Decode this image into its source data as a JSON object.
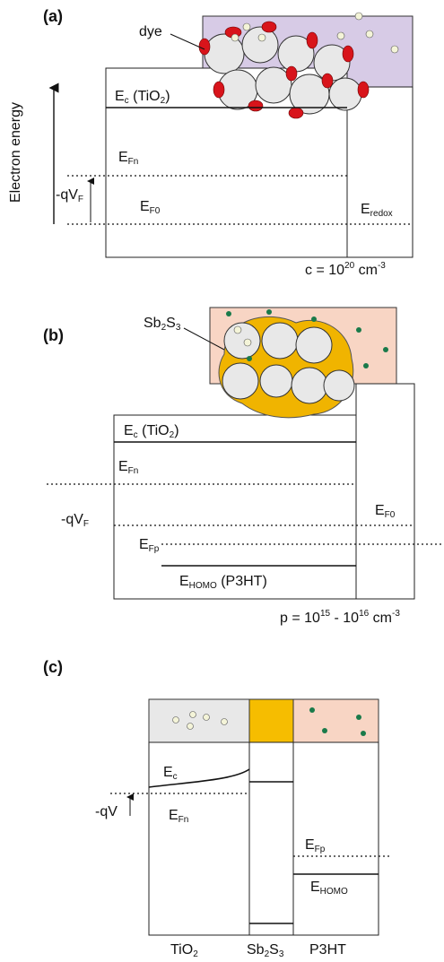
{
  "panel_a": {
    "label": "(a)",
    "dye": "dye",
    "ec": [
      "E",
      "c",
      " (TiO",
      "2",
      ")"
    ],
    "efn": [
      "E",
      "Fn"
    ],
    "ef0": [
      "E",
      "F0"
    ],
    "eredox": [
      "E",
      "redox"
    ],
    "conc": [
      "c = 10",
      "20",
      " cm",
      "-3"
    ],
    "axis": "Electron energy",
    "qv": [
      "-qV",
      "F"
    ]
  },
  "panel_b": {
    "label": "(b)",
    "absorber": [
      "Sb",
      "2",
      "S",
      "3"
    ],
    "ec": [
      "E",
      "c",
      " (TiO",
      "2",
      ")"
    ],
    "efn": [
      "E",
      "Fn"
    ],
    "qv": [
      "-qV",
      "F"
    ],
    "ef0": [
      "E",
      "F0"
    ],
    "efp": [
      "E",
      "Fp"
    ],
    "homo": [
      "E",
      "HOMO",
      " (P3HT)"
    ],
    "conc": [
      "p = 10",
      "15",
      " - 10",
      "16",
      " cm",
      "-3"
    ]
  },
  "panel_c": {
    "label": "(c)",
    "ec": [
      "E",
      "c"
    ],
    "efn": [
      "E",
      "Fn"
    ],
    "qv": "-qV",
    "efp": [
      "E",
      "Fp"
    ],
    "homo": [
      "E",
      "HOMO"
    ],
    "tio2": [
      "TiO",
      "2"
    ],
    "absorber": [
      "Sb",
      "2",
      "S",
      "3"
    ],
    "p3ht": "P3HT"
  }
}
